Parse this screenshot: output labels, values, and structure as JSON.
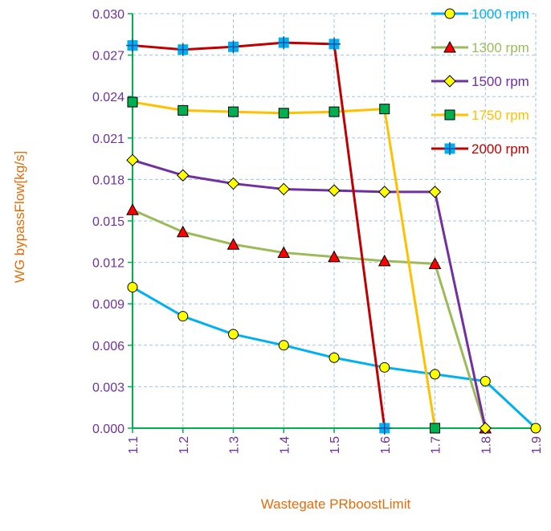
{
  "chart_data": {
    "type": "line",
    "title": "",
    "xlabel": "Wastegate PRboostLimit",
    "ylabel": "WG bypassFlow[kg/s]",
    "x": [
      1.1,
      1.2,
      1.3,
      1.4,
      1.5,
      1.6,
      1.7,
      1.8,
      1.9
    ],
    "x_tick_labels": [
      "1.1",
      "1.2",
      "1.3",
      "1.4",
      "1.5",
      "1.6",
      "1.7",
      "1.8",
      "1.9"
    ],
    "xlim": [
      1.1,
      1.9
    ],
    "ylim": [
      0,
      0.03
    ],
    "y_ticks": [
      0,
      0.003,
      0.006,
      0.009,
      0.012,
      0.015,
      0.018,
      0.021,
      0.024,
      0.027,
      0.03
    ],
    "y_tick_labels": [
      "0.000",
      "0.003",
      "0.006",
      "0.009",
      "0.012",
      "0.015",
      "0.018",
      "0.021",
      "0.024",
      "0.027",
      "0.030"
    ],
    "grid": "dashed",
    "legend_position": "top-right",
    "series": [
      {
        "name": "1000 rpm",
        "color": "#00b0f0",
        "marker": "circle",
        "marker_fill": "#ffff00",
        "label_color": "#00b0f0",
        "x": [
          1.1,
          1.2,
          1.3,
          1.4,
          1.5,
          1.6,
          1.7,
          1.8,
          1.9
        ],
        "values": [
          0.0102,
          0.0081,
          0.0068,
          0.006,
          0.0051,
          0.0044,
          0.0039,
          0.0034,
          0.0
        ]
      },
      {
        "name": "1300 rpm",
        "color": "#9bbb59",
        "marker": "triangle",
        "marker_fill": "#ff0000",
        "label_color": "#9bbb59",
        "x": [
          1.1,
          1.2,
          1.3,
          1.4,
          1.5,
          1.6,
          1.7,
          1.8
        ],
        "values": [
          0.0158,
          0.0142,
          0.0133,
          0.0127,
          0.0124,
          0.0121,
          0.0119,
          0.0
        ]
      },
      {
        "name": "1500 rpm",
        "color": "#7030a0",
        "marker": "diamond",
        "marker_fill": "#ffff00",
        "label_color": "#7030a0",
        "x": [
          1.1,
          1.2,
          1.3,
          1.4,
          1.5,
          1.6,
          1.7,
          1.8
        ],
        "values": [
          0.0194,
          0.0183,
          0.0177,
          0.0173,
          0.0172,
          0.0171,
          0.0171,
          0.0
        ]
      },
      {
        "name": "1750 rpm",
        "color": "#ffc000",
        "marker": "square",
        "marker_fill": "#00b050",
        "label_color": "#ffc000",
        "x": [
          1.1,
          1.2,
          1.3,
          1.4,
          1.5,
          1.6,
          1.7
        ],
        "values": [
          0.0236,
          0.023,
          0.0229,
          0.0228,
          0.0229,
          0.0231,
          0.0
        ]
      },
      {
        "name": "2000 rpm",
        "color": "#c00000",
        "marker": "plus-square",
        "marker_fill": "#00b0f0",
        "label_color": "#c00000",
        "x": [
          1.1,
          1.2,
          1.3,
          1.4,
          1.5,
          1.6
        ],
        "values": [
          0.0277,
          0.0274,
          0.0276,
          0.0279,
          0.0278,
          0.0
        ]
      }
    ]
  },
  "colors": {
    "axis": "#00b050",
    "grid": "#9dc3e6",
    "tick_label": "#7030a0",
    "axis_title": "#e46c0a"
  }
}
